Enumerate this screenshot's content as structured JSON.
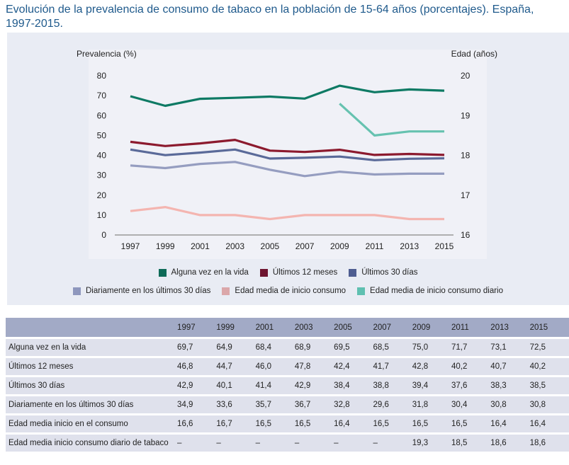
{
  "title": "Evolución de la prevalencia de consumo de tabaco en la población de 15-64 años (porcentajes). España, 1997-2015.",
  "chart_data": {
    "type": "line",
    "title": "Evolución de la prevalencia de consumo de tabaco en la población de 15-64 años (porcentajes). España, 1997-2015.",
    "ylabel": "Prevalencia (%)",
    "y2label": "Edad (años)",
    "ylim": [
      0,
      80
    ],
    "y2lim": [
      16,
      20
    ],
    "yticks": [
      "0",
      "10",
      "20",
      "30",
      "40",
      "50",
      "60",
      "70",
      "80"
    ],
    "y2ticks": [
      "16",
      "17",
      "18",
      "19",
      "20"
    ],
    "categories": [
      "1997",
      "1999",
      "2001",
      "2003",
      "2005",
      "2007",
      "2009",
      "2011",
      "2013",
      "2015"
    ],
    "grid": false,
    "legend_position": "bottom",
    "series": [
      {
        "name": "Alguna vez en la vida",
        "axis": "left",
        "color": "#0e7a64",
        "values": [
          69.7,
          64.9,
          68.4,
          68.9,
          69.5,
          68.5,
          75.0,
          71.7,
          73.1,
          72.5
        ]
      },
      {
        "name": "Últimos 12 meses",
        "axis": "left",
        "color": "#8c1a2e",
        "values": [
          46.8,
          44.7,
          46.0,
          47.8,
          42.4,
          41.7,
          42.8,
          40.2,
          40.7,
          40.2
        ]
      },
      {
        "name": "Últimos 30 días",
        "axis": "left",
        "color": "#5a6a99",
        "values": [
          42.9,
          40.1,
          41.4,
          42.9,
          38.4,
          38.8,
          39.4,
          37.6,
          38.3,
          38.5
        ]
      },
      {
        "name": "Diariamente en los últimos 30 días",
        "axis": "left",
        "color": "#959dc0",
        "values": [
          34.9,
          33.6,
          35.7,
          36.7,
          32.8,
          29.6,
          31.8,
          30.4,
          30.8,
          30.8
        ]
      },
      {
        "name": "Edad media de inicio consumo",
        "axis": "right",
        "color": "#f4b5b0",
        "values": [
          16.6,
          16.7,
          16.5,
          16.5,
          16.4,
          16.5,
          16.5,
          16.5,
          16.4,
          16.4
        ]
      },
      {
        "name": "Edad media de inicio consumo diario",
        "axis": "right",
        "color": "#66c2b0",
        "values": [
          null,
          null,
          null,
          null,
          null,
          null,
          19.3,
          18.5,
          18.6,
          18.6
        ]
      }
    ]
  },
  "legend": {
    "row1": [
      {
        "label": "Alguna vez en la vida",
        "color": "#0e6b58"
      },
      {
        "label": "Últimos 12 meses",
        "color": "#6e1530"
      },
      {
        "label": "Últimos 30 días",
        "color": "#4e5d91"
      }
    ],
    "row2": [
      {
        "label": "Diariamente en los últimos 30 días",
        "color": "#8e97bd"
      },
      {
        "label": "Edad media de inicio consumo",
        "color": "#dba7aa"
      },
      {
        "label": "Edad media de inicio consumo diario",
        "color": "#5fc0b1"
      }
    ]
  },
  "table": {
    "headers": [
      "",
      "1997",
      "1999",
      "2001",
      "2003",
      "2005",
      "2007",
      "2009",
      "2011",
      "2013",
      "2015"
    ],
    "rows": [
      [
        "Alguna vez en la vida",
        "69,7",
        "64,9",
        "68,4",
        "68,9",
        "69,5",
        "68,5",
        "75,0",
        "71,7",
        "73,1",
        "72,5"
      ],
      [
        "Últimos 12 meses",
        "46,8",
        "44,7",
        "46,0",
        "47,8",
        "42,4",
        "41,7",
        "42,8",
        "40,2",
        "40,7",
        "40,2"
      ],
      [
        "Últimos 30 días",
        "42,9",
        "40,1",
        "41,4",
        "42,9",
        "38,4",
        "38,8",
        "39,4",
        "37,6",
        "38,3",
        "38,5"
      ],
      [
        "Diariamente en los últimos 30 días",
        "34,9",
        "33,6",
        "35,7",
        "36,7",
        "32,8",
        "29,6",
        "31,8",
        "30,4",
        "30,8",
        "30,8"
      ],
      [
        "Edad media inicio en el consumo",
        "16,6",
        "16,7",
        "16,5",
        "16,5",
        "16,4",
        "16,5",
        "16,5",
        "16,5",
        "16,4",
        "16,4"
      ],
      [
        "Edad media inicio consumo diario de tabaco",
        "–",
        "–",
        "–",
        "–",
        "–",
        "–",
        "19,3",
        "18,5",
        "18,6",
        "18,6"
      ]
    ]
  }
}
